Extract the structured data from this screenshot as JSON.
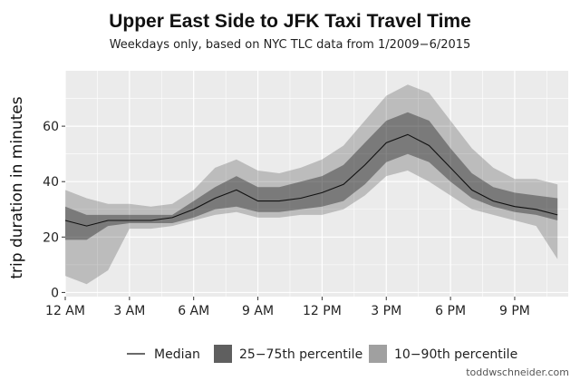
{
  "chart_data": {
    "type": "area",
    "title": "Upper East Side to JFK Taxi Travel Time",
    "subtitle": "Weekdays only, based on NYC TLC data from 1/2009−6/2015",
    "xlabel": "",
    "ylabel": "trip duration in minutes",
    "xlim": [
      0,
      23.5
    ],
    "ylim": [
      -1.5,
      80
    ],
    "x_ticks": [
      0,
      3,
      6,
      9,
      12,
      15,
      18,
      21
    ],
    "x_tick_labels": [
      "12 AM",
      "3 AM",
      "6 AM",
      "9 AM",
      "12 PM",
      "3 PM",
      "6 PM",
      "9 PM"
    ],
    "y_ticks": [
      0,
      20,
      40,
      60
    ],
    "grid": true,
    "legend_position": "bottom",
    "x": [
      0,
      1,
      2,
      3,
      4,
      5,
      6,
      7,
      8,
      9,
      10,
      11,
      12,
      13,
      14,
      15,
      16,
      17,
      18,
      19,
      20,
      21,
      22,
      23
    ],
    "series": [
      {
        "name": "Median",
        "values": [
          26,
          24,
          26,
          26,
          26,
          27,
          30,
          34,
          37,
          33,
          33,
          34,
          36,
          39,
          46,
          54,
          57,
          53,
          45,
          37,
          33,
          31,
          30,
          28
        ]
      },
      {
        "name": "25−75th percentile",
        "low": [
          19,
          19,
          24,
          25,
          25,
          25,
          27,
          30,
          31,
          29,
          29,
          30,
          31,
          33,
          39,
          47,
          50,
          47,
          40,
          34,
          31,
          29,
          28,
          26
        ],
        "high": [
          31,
          28,
          28,
          28,
          28,
          28,
          33,
          38,
          42,
          38,
          38,
          40,
          42,
          46,
          54,
          62,
          65,
          62,
          52,
          43,
          38,
          36,
          35,
          34
        ]
      },
      {
        "name": "10−90th percentile",
        "low": [
          6,
          3,
          8,
          23,
          23,
          24,
          26,
          28,
          29,
          27,
          27,
          28,
          28,
          30,
          35,
          42,
          44,
          40,
          35,
          30,
          28,
          26,
          24,
          12
        ],
        "high": [
          37,
          34,
          32,
          32,
          31,
          32,
          37,
          45,
          48,
          44,
          43,
          45,
          48,
          53,
          62,
          71,
          75,
          72,
          62,
          52,
          45,
          41,
          41,
          39
        ]
      }
    ],
    "colors": {
      "band_outer": "#c6c6c6",
      "band_inner": "#777777",
      "median": "#111111",
      "panel": "#ebebeb",
      "grid": "#ffffff"
    }
  },
  "credit": "toddwschneider.com"
}
